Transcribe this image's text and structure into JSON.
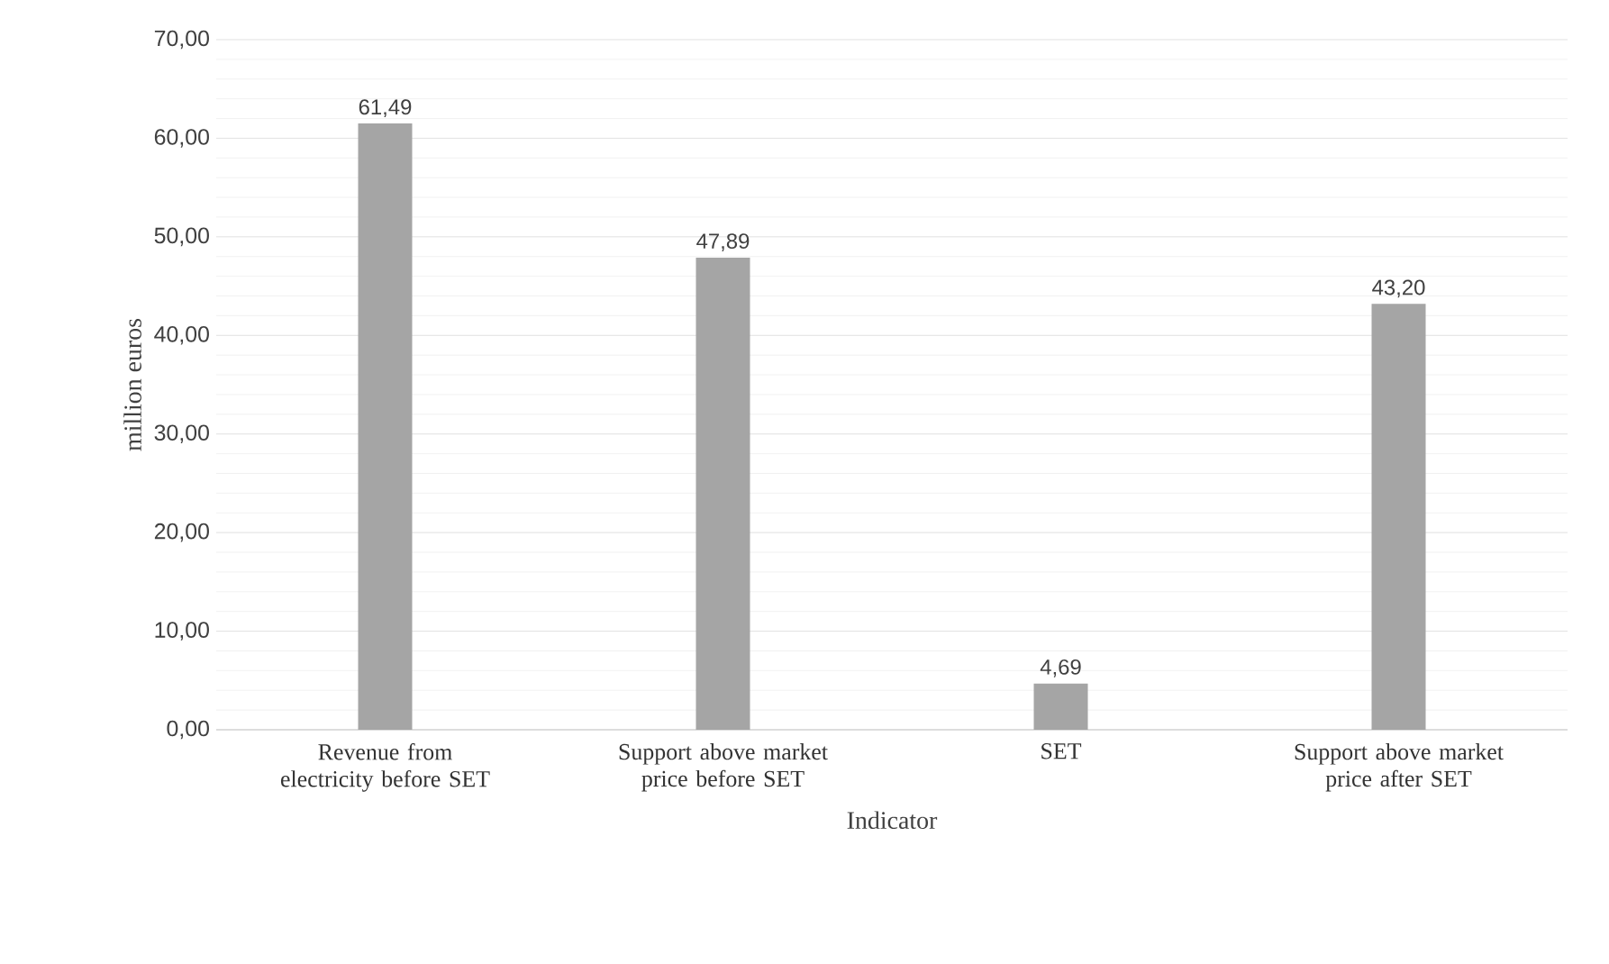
{
  "chart_data": {
    "type": "bar",
    "xlabel": "Indicator",
    "ylabel": "million euros",
    "categories": [
      "Revenue from electricity before SET",
      "Support above market price before SET",
      "SET",
      "Support above market price after SET"
    ],
    "values": [
      61.49,
      47.89,
      4.69,
      43.2
    ],
    "value_labels": [
      "61,49",
      "47,89",
      "4,69",
      "43,20"
    ],
    "color": "#a5a5a5",
    "ylim": [
      0,
      70
    ],
    "yticks": [
      {
        "value": 0,
        "label": "0,00"
      },
      {
        "value": 10,
        "label": "10,00"
      },
      {
        "value": 20,
        "label": "20,00"
      },
      {
        "value": 30,
        "label": "30,00"
      },
      {
        "value": 40,
        "label": "40,00"
      },
      {
        "value": 50,
        "label": "50,00"
      },
      {
        "value": 60,
        "label": "60,00"
      },
      {
        "value": 70,
        "label": "70,00"
      }
    ],
    "grid": true
  }
}
